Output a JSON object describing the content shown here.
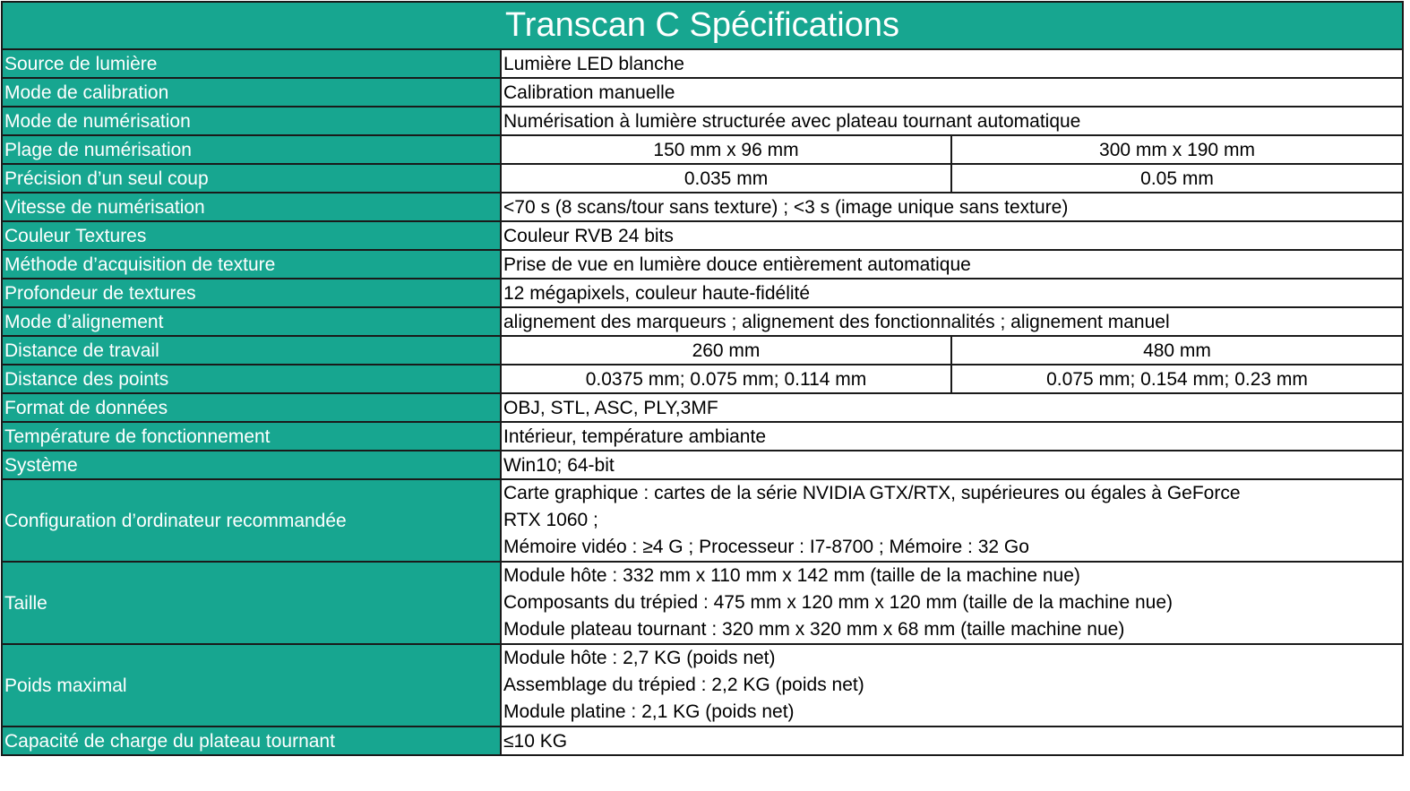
{
  "title": "Transcan C Spécifications",
  "accent_color": "#17a690",
  "rows": [
    {
      "label": "Source de lumière",
      "value": "Lumière LED blanche"
    },
    {
      "label": "Mode de calibration",
      "value": "Calibration manuelle"
    },
    {
      "label": "Mode de numérisation",
      "value": "Numérisation à lumière structurée avec plateau tournant automatique"
    },
    {
      "label": "Plage de numérisation",
      "values": [
        "150 mm x 96 mm",
        "300 mm x 190 mm"
      ]
    },
    {
      "label": "Précision d’un seul coup",
      "values": [
        "0.035 mm",
        "0.05 mm"
      ]
    },
    {
      "label": "Vitesse de numérisation",
      "value": "<70 s (8 scans/tour sans texture) ; <3 s (image unique sans texture)"
    },
    {
      "label": "Couleur Textures",
      "value": "Couleur RVB 24 bits"
    },
    {
      "label": "Méthode d’acquisition de texture",
      "value": "Prise de vue en lumière douce entièrement automatique"
    },
    {
      "label": "Profondeur de textures",
      "value": "12 mégapixels, couleur haute-fidélité"
    },
    {
      "label": "Mode d’alignement",
      "value": "alignement des marqueurs ; alignement des fonctionnalités ; alignement manuel"
    },
    {
      "label": "Distance de travail",
      "values": [
        "260 mm",
        "480 mm"
      ]
    },
    {
      "label": "Distance des points",
      "values": [
        "0.0375 mm;  0.075 mm;  0.114 mm",
        "0.075 mm;  0.154 mm;  0.23 mm"
      ]
    },
    {
      "label": "Format de données",
      "value": "OBJ, STL, ASC, PLY,3MF"
    },
    {
      "label": "Température de fonctionnement",
      "value": "Intérieur, température ambiante"
    },
    {
      "label": "Système",
      "value": "Win10; 64-bit"
    },
    {
      "label": "Configuration d’ordinateur recommandée",
      "lines": [
        "Carte graphique : cartes de la série NVIDIA GTX/RTX, supérieures ou égales à GeForce",
        "RTX 1060 ;",
        "Mémoire vidéo : ≥4 G ; Processeur : I7-8700 ; Mémoire : 32 Go"
      ]
    },
    {
      "label": "Taille",
      "lines": [
        "Module hôte : 332 mm x 110 mm x 142 mm (taille de la machine nue)",
        "Composants du trépied : 475 mm x 120 mm x 120 mm (taille de la machine nue)",
        "Module plateau tournant : 320 mm x 320 mm x 68 mm (taille machine nue)"
      ]
    },
    {
      "label": "Poids maximal",
      "lines": [
        "Module hôte : 2,7 KG (poids net)",
        "Assemblage du trépied : 2,2 KG (poids net)",
        "Module platine : 2,1 KG (poids net)"
      ]
    },
    {
      "label": "Capacité de charge du plateau tournant",
      "value": "≤10 KG"
    }
  ]
}
